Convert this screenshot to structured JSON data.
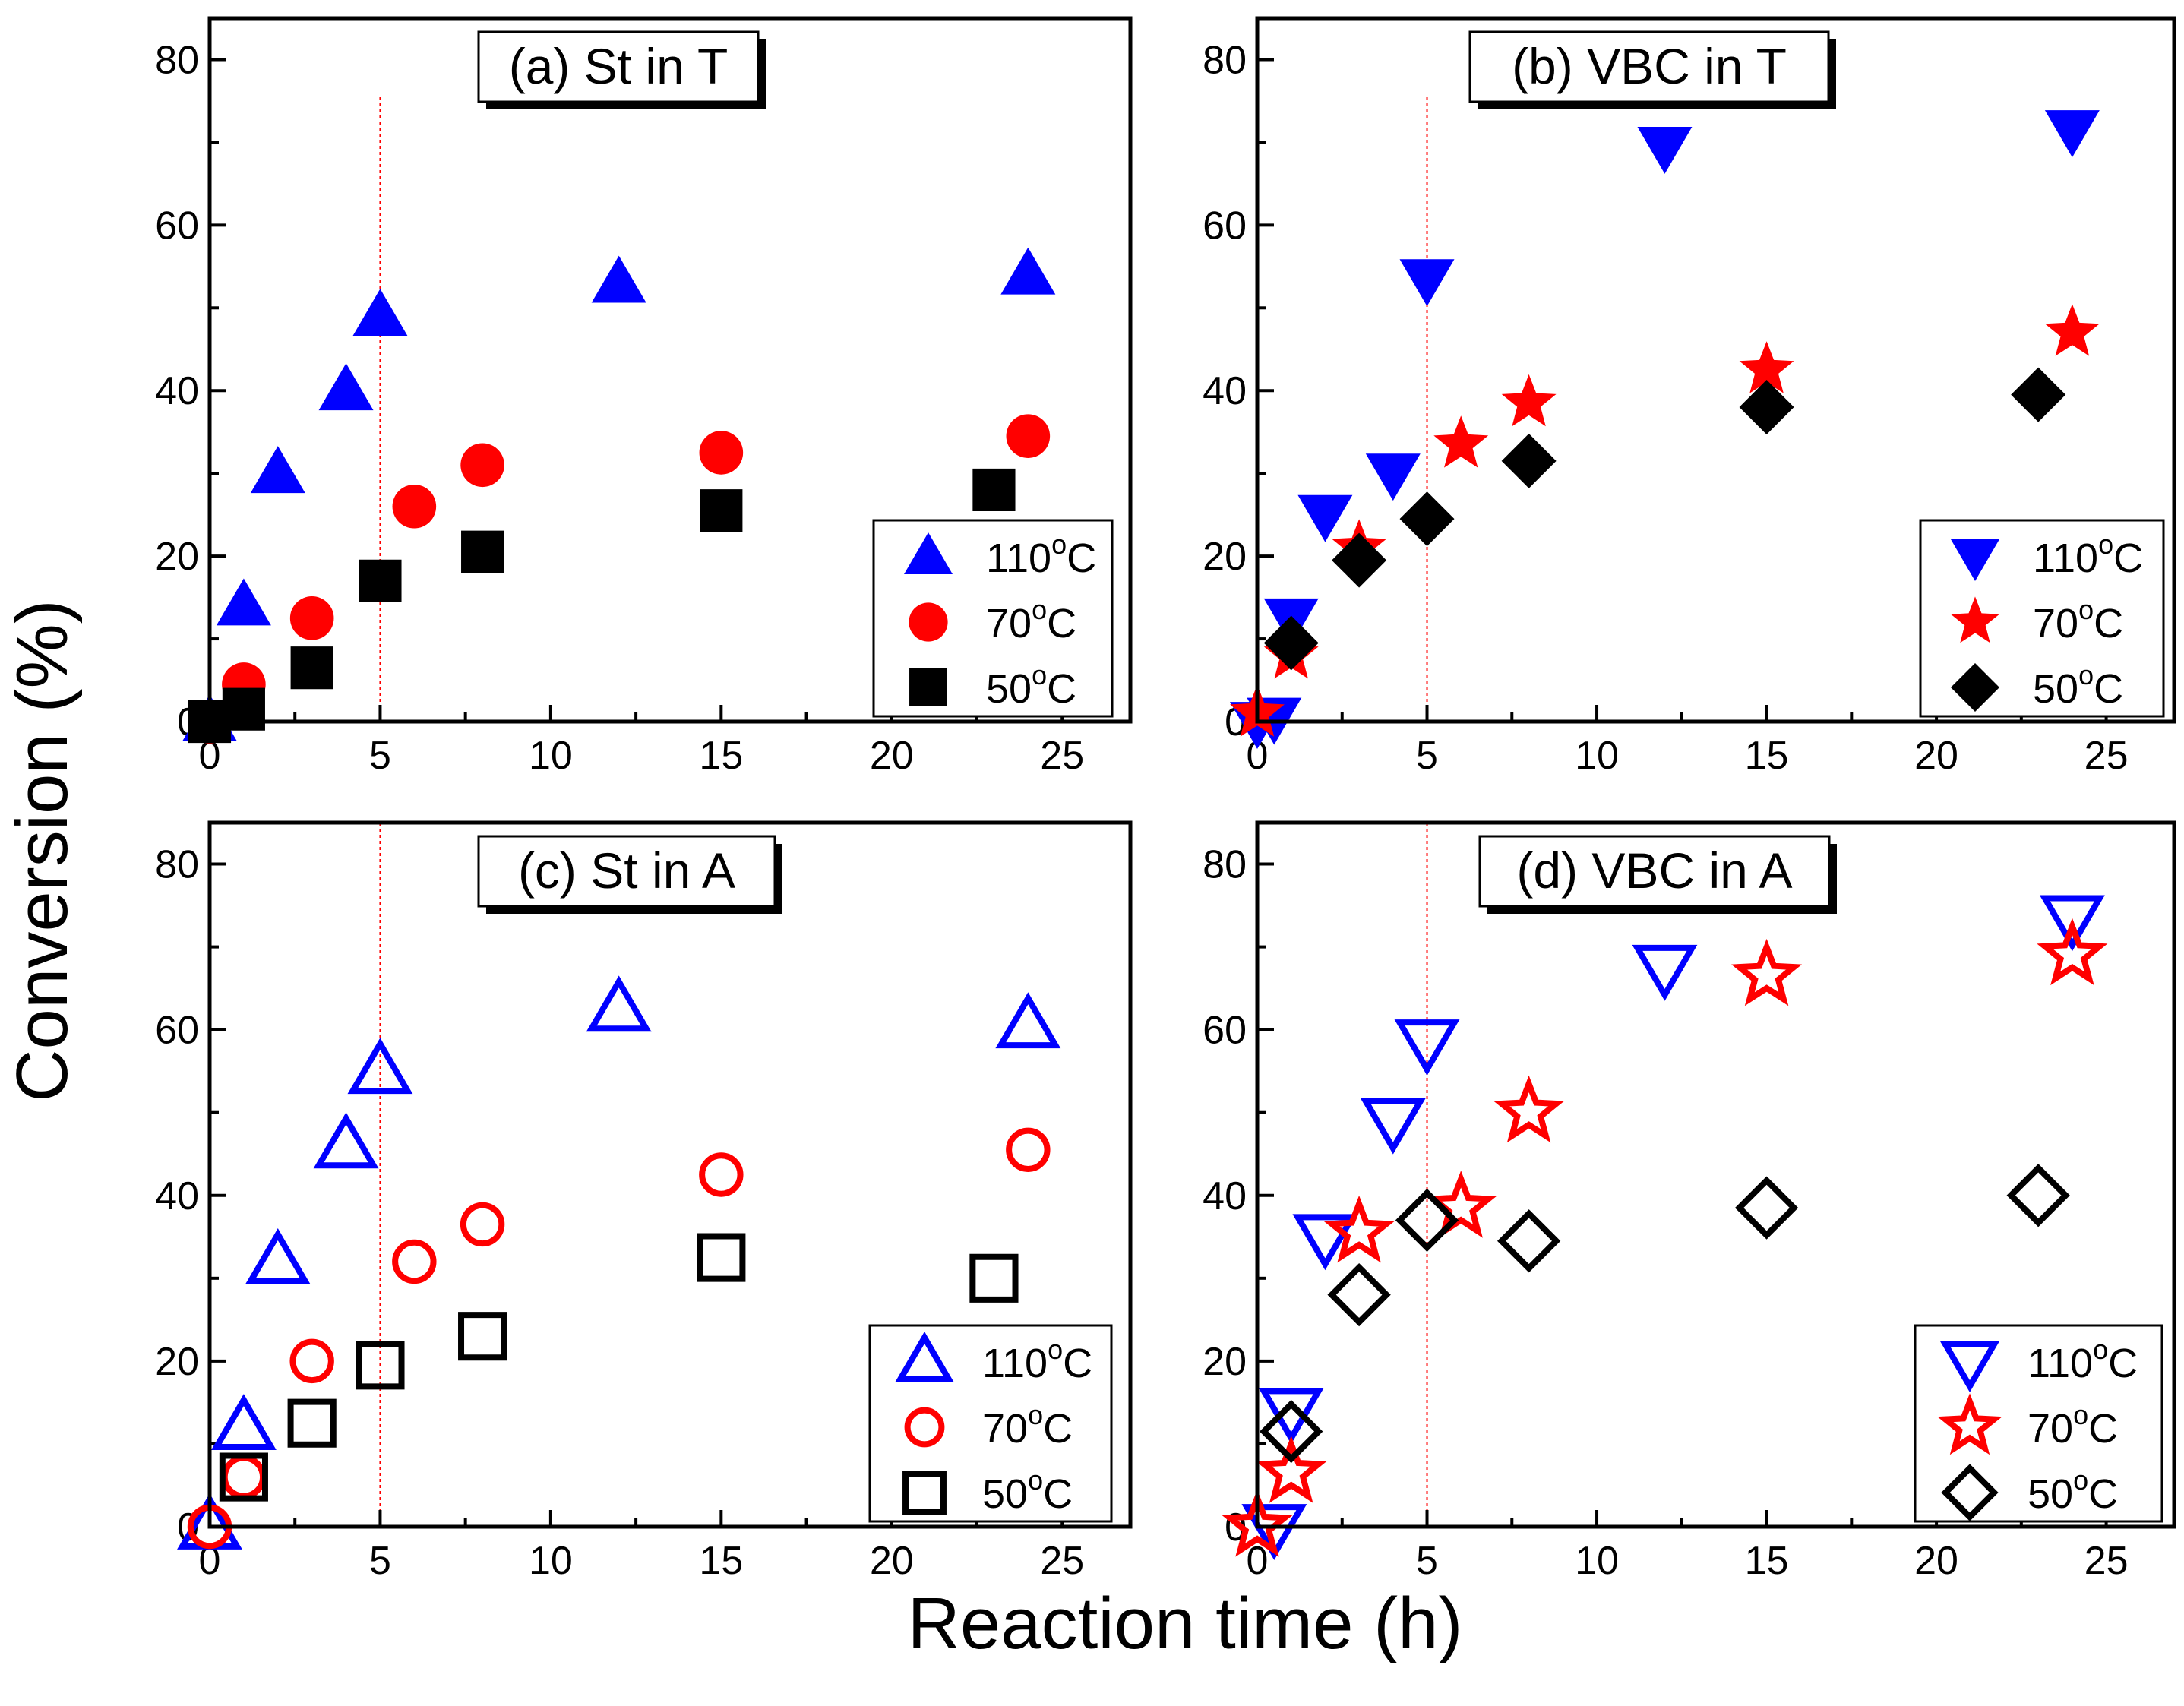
{
  "figure": {
    "ylabel": "Conversion (%)",
    "xlabel": "Reaction time (h)"
  },
  "chart_data": [
    {
      "type": "scatter",
      "title": "(a) St in T",
      "xlabel": "Reaction time (h)",
      "ylabel": "Conversion (%)",
      "xlim": [
        0,
        27
      ],
      "ylim": [
        0,
        85
      ],
      "xticks": [
        "0",
        "5",
        "10",
        "15",
        "20",
        "25"
      ],
      "yticks": [
        "0",
        "20",
        "40",
        "60",
        "80"
      ],
      "reference_line_x": 5,
      "legend_position": "bottom-right",
      "series": [
        {
          "name": "110°C",
          "temp": "110",
          "marker": "triangle-up",
          "filled": true,
          "color": "#0000ff",
          "x": [
            0,
            1,
            2,
            4,
            5,
            12,
            24
          ],
          "y": [
            0,
            14,
            30,
            40,
            49,
            53,
            54
          ]
        },
        {
          "name": "70°C",
          "temp": "70",
          "marker": "circle",
          "filled": true,
          "color": "#ff0000",
          "x": [
            0,
            1,
            3,
            6,
            8,
            15,
            24
          ],
          "y": [
            0,
            4.5,
            12.5,
            26,
            31,
            32.5,
            34.5
          ]
        },
        {
          "name": "50°C",
          "temp": "50",
          "marker": "square",
          "filled": true,
          "color": "#000000",
          "x": [
            0,
            1,
            3,
            5,
            8,
            15,
            23
          ],
          "y": [
            0,
            1.5,
            6.5,
            17,
            20.5,
            25.5,
            28
          ]
        }
      ]
    },
    {
      "type": "scatter",
      "title": "(b) VBC in T",
      "xlabel": "Reaction time (h)",
      "ylabel": "Conversion (%)",
      "xlim": [
        0,
        27
      ],
      "ylim": [
        0,
        85
      ],
      "xticks": [
        "0",
        "5",
        "10",
        "15",
        "20",
        "25"
      ],
      "yticks": [
        "0",
        "20",
        "40",
        "60",
        "80"
      ],
      "reference_line_x": 5,
      "legend_position": "bottom-right",
      "series": [
        {
          "name": "110°C",
          "temp": "110",
          "marker": "triangle-down",
          "filled": true,
          "color": "#0000ff",
          "x": [
            0,
            0.5,
            1,
            2,
            4,
            5,
            12,
            24
          ],
          "y": [
            0,
            0.5,
            12.5,
            25,
            30,
            53.5,
            69.5,
            71.5
          ]
        },
        {
          "name": "70°C",
          "temp": "70",
          "marker": "star",
          "filled": true,
          "color": "#ff0000",
          "x": [
            0,
            1,
            3,
            6,
            8,
            15,
            24
          ],
          "y": [
            1,
            8,
            21,
            33.5,
            38.5,
            42.5,
            47
          ]
        },
        {
          "name": "50°C",
          "temp": "50",
          "marker": "diamond",
          "filled": true,
          "color": "#000000",
          "x": [
            1,
            3,
            5,
            8,
            15,
            23
          ],
          "y": [
            9.5,
            19.5,
            24.5,
            31.5,
            38,
            39.5
          ]
        }
      ]
    },
    {
      "type": "scatter",
      "title": "(c) St in A",
      "xlabel": "Reaction time (h)",
      "ylabel": "Conversion (%)",
      "xlim": [
        0,
        27
      ],
      "ylim": [
        0,
        85
      ],
      "xticks": [
        "0",
        "5",
        "10",
        "15",
        "20",
        "25"
      ],
      "yticks": [
        "0",
        "20",
        "40",
        "60",
        "80"
      ],
      "reference_line_x": 5,
      "legend_position": "bottom-right",
      "series": [
        {
          "name": "110°C",
          "temp": "110",
          "marker": "triangle-up",
          "filled": false,
          "color": "#0000ff",
          "x": [
            0,
            1,
            2,
            4,
            5,
            12,
            24
          ],
          "y": [
            0,
            12,
            32,
            46,
            55,
            62.5,
            60.5
          ]
        },
        {
          "name": "70°C",
          "temp": "70",
          "marker": "circle",
          "filled": false,
          "color": "#ff0000",
          "x": [
            0,
            1,
            3,
            6,
            8,
            15,
            24
          ],
          "y": [
            0,
            6,
            20,
            32,
            36.5,
            42.5,
            45.5
          ]
        },
        {
          "name": "50°C",
          "temp": "50",
          "marker": "square",
          "filled": false,
          "color": "#000000",
          "x": [
            1,
            3,
            5,
            8,
            15,
            23
          ],
          "y": [
            6,
            12.5,
            19.5,
            23,
            32.5,
            30
          ]
        }
      ]
    },
    {
      "type": "scatter",
      "title": "(d) VBC in A",
      "xlabel": "Reaction time (h)",
      "ylabel": "Conversion (%)",
      "xlim": [
        0,
        27
      ],
      "ylim": [
        0,
        85
      ],
      "xticks": [
        "0",
        "5",
        "10",
        "15",
        "20",
        "25"
      ],
      "yticks": [
        "0",
        "20",
        "40",
        "60",
        "80"
      ],
      "reference_line_x": 5,
      "legend_position": "bottom-right",
      "series": [
        {
          "name": "110°C",
          "temp": "110",
          "marker": "triangle-down",
          "filled": false,
          "color": "#0000ff",
          "x": [
            0.5,
            1,
            2,
            4,
            5,
            12,
            24
          ],
          "y": [
            0,
            14,
            35,
            49,
            58.5,
            67.5,
            73.5
          ]
        },
        {
          "name": "70°C",
          "temp": "70",
          "marker": "star",
          "filled": false,
          "color": "#ff0000",
          "x": [
            0,
            1,
            3,
            6,
            8,
            15,
            24
          ],
          "y": [
            0,
            6.5,
            35.5,
            38.5,
            50,
            66.5,
            69
          ]
        },
        {
          "name": "50°C",
          "temp": "50",
          "marker": "diamond",
          "filled": false,
          "color": "#000000",
          "x": [
            1,
            3,
            5,
            8,
            15,
            23
          ],
          "y": [
            11.5,
            28,
            37,
            34.5,
            38.5,
            40
          ]
        }
      ]
    }
  ]
}
